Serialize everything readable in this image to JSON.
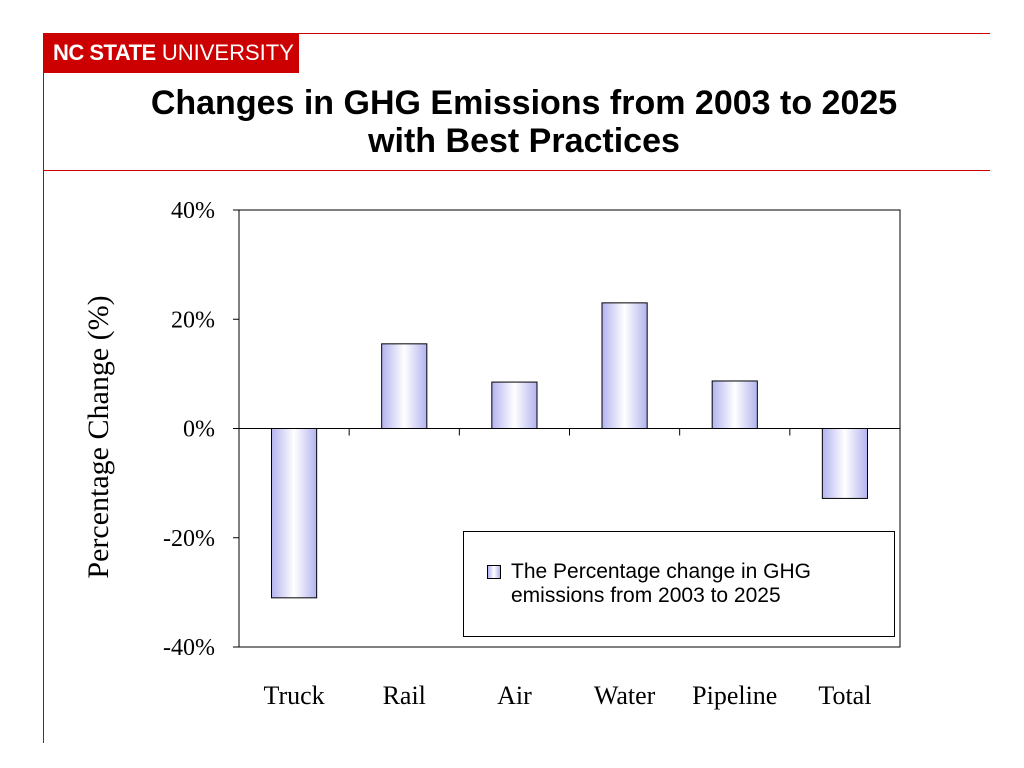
{
  "header": {
    "logo_bold": "NC STATE",
    "logo_regular": "UNIVERSITY",
    "title_line1": "Changes in GHG Emissions from 2003 to 2025",
    "title_line2": "with Best Practices"
  },
  "colors": {
    "brand": "#cc0000",
    "bar_edge": "#b3b3f0",
    "bar_center": "#ffffff"
  },
  "chart_data": {
    "type": "bar",
    "title": "Changes in GHG Emissions from 2003 to 2025 with Best Practices",
    "ylabel": "Percentage Change (%)",
    "xlabel": "",
    "categories": [
      "Truck",
      "Rail",
      "Air",
      "Water",
      "Pipeline",
      "Total"
    ],
    "series": [
      {
        "name": "The Percentage change in GHG emissions from 2003 to 2025",
        "values": [
          -31,
          15.5,
          8.5,
          23,
          8.7,
          -12.8
        ]
      }
    ],
    "ylim": [
      -40,
      40
    ],
    "yticks": [
      40,
      20,
      0,
      -20,
      -40
    ],
    "ytick_labels": [
      "40%",
      "20%",
      "0%",
      "-20%",
      "-40%"
    ],
    "grid": false,
    "legend_position": "bottom-right"
  }
}
